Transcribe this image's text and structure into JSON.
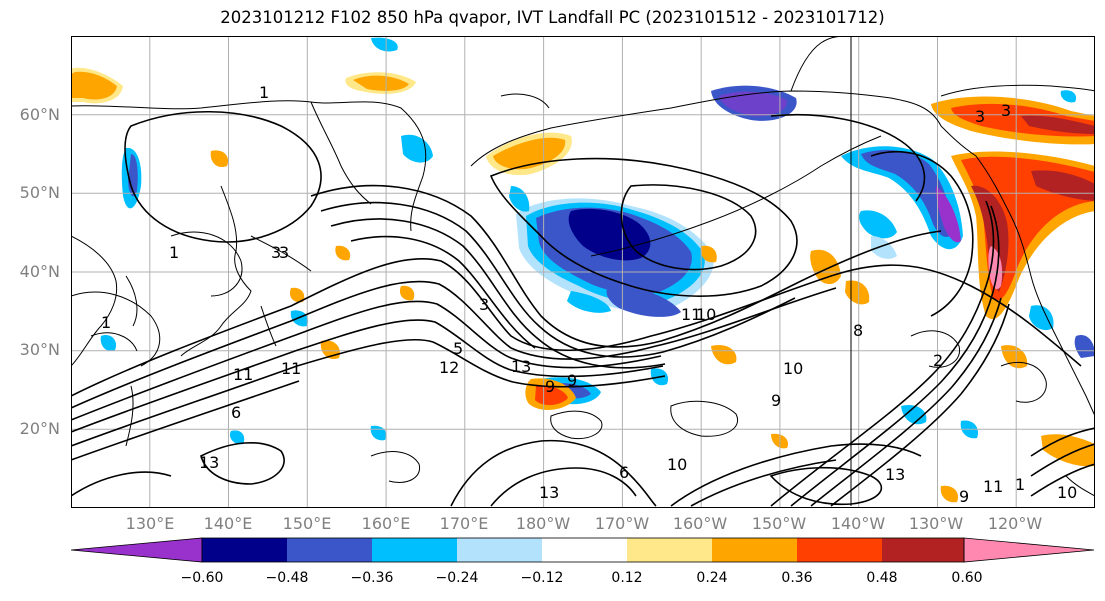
{
  "title": "2023101212 F102 850 hPa qvapor, IVT Landfall PC (2023101512 - 2023101712)",
  "map": {
    "projection": "equirectangular",
    "lon_range": [
      120,
      250
    ],
    "lat_range": [
      10,
      70
    ],
    "lat_labels": [
      "60°N",
      "50°N",
      "40°N",
      "30°N",
      "20°N"
    ],
    "lon_labels": [
      "130°E",
      "140°E",
      "150°E",
      "160°E",
      "170°E",
      "180°W",
      "170°W",
      "160°W",
      "150°W",
      "140°W",
      "130°W",
      "120°W"
    ],
    "contour_labels": [
      "1",
      "3",
      "1",
      "1",
      "3",
      "3",
      "5",
      "11",
      "11",
      "13",
      "12",
      "13",
      "6",
      "9",
      "9",
      "10",
      "10",
      "8",
      "10",
      "9",
      "13",
      "13",
      "11",
      "1",
      "10",
      "3",
      "3",
      "9",
      "2",
      "11",
      "6"
    ]
  },
  "colorbar": {
    "tick_labels": [
      "−0.60",
      "−0.48",
      "−0.36",
      "−0.24",
      "−0.12",
      "0.12",
      "0.24",
      "0.36",
      "0.48",
      "0.60"
    ],
    "ticks": [
      -0.6,
      -0.48,
      -0.36,
      -0.24,
      -0.12,
      0.12,
      0.24,
      0.36,
      0.48,
      0.6
    ],
    "colors": [
      "#9932cc",
      "#00008b",
      "#3a56c8",
      "#00bfff",
      "#b3e3fc",
      "#ffffff",
      "#ffe88a",
      "#ffa500",
      "#ff4000",
      "#b22222",
      "#ff88b0"
    ]
  }
}
